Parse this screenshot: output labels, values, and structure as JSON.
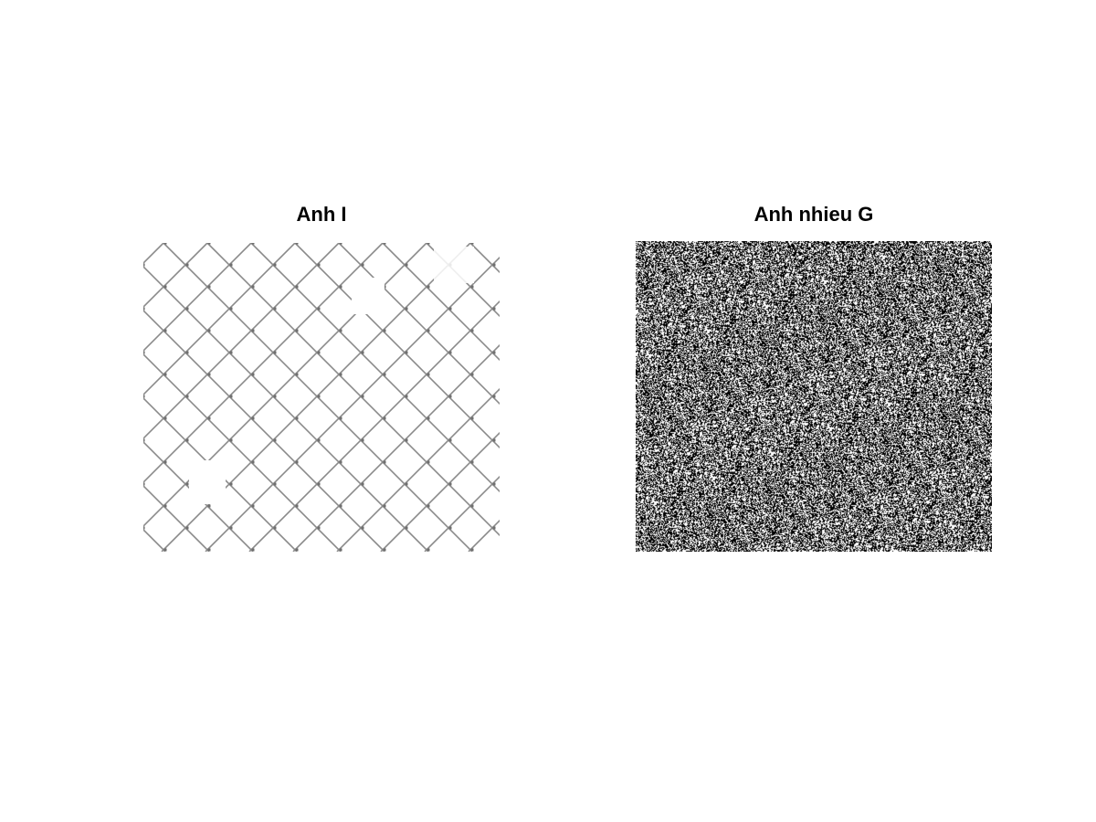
{
  "figure": {
    "panels": [
      {
        "title": "Anh I",
        "image": "chain-link-fence",
        "colors": {
          "background": "#ffffff",
          "wire": "#8a8a8a"
        }
      },
      {
        "title": "Anh nhieu G",
        "image": "random-noise",
        "colors": {
          "dark": "#000000",
          "light": "#ffffff"
        }
      }
    ]
  }
}
